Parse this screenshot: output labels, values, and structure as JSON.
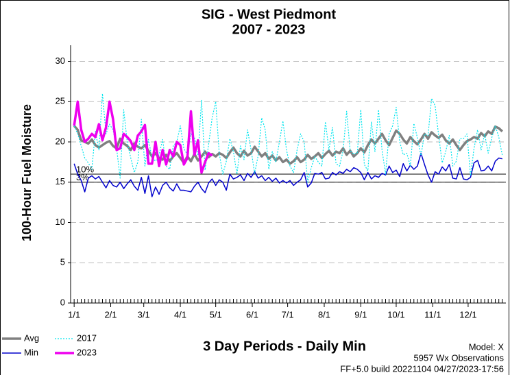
{
  "chart_data": {
    "type": "line",
    "title": "SIG - West Piedmont",
    "subtitle": "2007 - 2023",
    "y_label": "100-Hour Fuel Moisture",
    "x_label": "3 Day Periods - Daily Min",
    "notes": [
      "Model: X",
      "5957 Wx Observations",
      "FF+5.0 build 20221104 04/27/2023-17:56"
    ],
    "xlim": [
      -1,
      122
    ],
    "ylim": [
      0,
      32
    ],
    "yticks": [
      0,
      5,
      10,
      15,
      20,
      25,
      30
    ],
    "xticks": [
      {
        "value": 0,
        "label": "1/1"
      },
      {
        "value": 10.33,
        "label": "2/1"
      },
      {
        "value": 19.67,
        "label": "3/1"
      },
      {
        "value": 30,
        "label": "4/1"
      },
      {
        "value": 40,
        "label": "5/1"
      },
      {
        "value": 50.33,
        "label": "6/1"
      },
      {
        "value": 60.33,
        "label": "7/1"
      },
      {
        "value": 70.67,
        "label": "8/1"
      },
      {
        "value": 81,
        "label": "9/1"
      },
      {
        "value": 91,
        "label": "10/1"
      },
      {
        "value": 101.33,
        "label": "11/1"
      },
      {
        "value": 111.33,
        "label": "12/1"
      }
    ],
    "grid": true,
    "legend": "bottom-left",
    "reference_lines": [
      {
        "value": 16,
        "label": "10%"
      },
      {
        "value": 15,
        "label": "3%"
      }
    ],
    "x": [
      0,
      1,
      2,
      3,
      4,
      5,
      6,
      7,
      8,
      9,
      10,
      11,
      12,
      13,
      14,
      15,
      16,
      17,
      18,
      19,
      20,
      21,
      22,
      23,
      24,
      25,
      26,
      27,
      28,
      29,
      30,
      31,
      32,
      33,
      34,
      35,
      36,
      37,
      38,
      39,
      40,
      41,
      42,
      43,
      44,
      45,
      46,
      47,
      48,
      49,
      50,
      51,
      52,
      53,
      54,
      55,
      56,
      57,
      58,
      59,
      60,
      61,
      62,
      63,
      64,
      65,
      66,
      67,
      68,
      69,
      70,
      71,
      72,
      73,
      74,
      75,
      76,
      77,
      78,
      79,
      80,
      81,
      82,
      83,
      84,
      85,
      86,
      87,
      88,
      89,
      90,
      91,
      92,
      93,
      94,
      95,
      96,
      97,
      98,
      99,
      100,
      101,
      102,
      103,
      104,
      105,
      106,
      107,
      108,
      109,
      110,
      111,
      112,
      113,
      114,
      115,
      116,
      117,
      118,
      119,
      120,
      121
    ],
    "series": [
      {
        "name": "Avg",
        "color": "#808080",
        "width": 3.5,
        "dash": "none",
        "values": [
          22.0,
          21.5,
          20.2,
          20.0,
          19.8,
          20.3,
          19.6,
          19.3,
          19.6,
          19.9,
          20.1,
          19.5,
          19.2,
          20.4,
          19.8,
          19.5,
          19.0,
          19.8,
          19.4,
          19.2,
          19.6,
          18.9,
          18.2,
          18.6,
          18.0,
          17.8,
          18.4,
          17.6,
          18.2,
          18.6,
          18.0,
          17.4,
          18.2,
          17.6,
          18.5,
          17.7,
          18.2,
          18.8,
          18.1,
          18.5,
          18.2,
          18.6,
          18.4,
          18.0,
          18.7,
          19.3,
          18.6,
          18.2,
          18.9,
          18.3,
          18.6,
          19.4,
          18.8,
          18.2,
          18.6,
          17.9,
          18.3,
          17.7,
          18.1,
          17.5,
          17.8,
          17.3,
          17.6,
          18.1,
          17.5,
          17.8,
          18.4,
          17.9,
          18.2,
          18.6,
          18.0,
          18.5,
          18.9,
          18.3,
          18.8,
          18.6,
          19.2,
          18.4,
          18.9,
          18.2,
          18.6,
          19.2,
          18.7,
          19.6,
          20.3,
          19.8,
          20.4,
          21.0,
          20.2,
          19.6,
          20.5,
          21.4,
          21.0,
          20.3,
          19.8,
          20.6,
          20.1,
          19.7,
          20.3,
          21.0,
          20.4,
          21.2,
          20.8,
          20.5,
          20.9,
          20.2,
          19.8,
          20.3,
          19.6,
          19.0,
          19.6,
          20.1,
          20.3,
          20.6,
          20.4,
          21.1,
          20.7,
          21.3,
          21.0,
          21.9,
          21.7,
          21.3
        ]
      },
      {
        "name": "Min",
        "color": "#0000cc",
        "width": 1.5,
        "dash": "none",
        "values": [
          17.3,
          16.0,
          15.2,
          13.8,
          15.5,
          15.8,
          15.4,
          15.7,
          15.0,
          14.3,
          15.2,
          14.6,
          14.4,
          15.0,
          14.2,
          14.8,
          15.3,
          14.5,
          14.0,
          15.6,
          13.6,
          15.8,
          13.2,
          14.4,
          13.5,
          14.6,
          15.0,
          14.3,
          13.9,
          14.8,
          14.0,
          14.0,
          13.9,
          13.8,
          14.5,
          15.0,
          14.2,
          13.7,
          14.9,
          15.4,
          14.6,
          15.3,
          15.0,
          14.0,
          16.0,
          15.4,
          15.6,
          15.9,
          15.2,
          16.1,
          15.6,
          16.3,
          15.5,
          15.8,
          15.2,
          15.6,
          15.1,
          15.5,
          14.9,
          15.2,
          14.9,
          15.2,
          14.6,
          15.0,
          15.3,
          16.2,
          14.4,
          14.9,
          16.1,
          16.0,
          16.2,
          15.4,
          15.5,
          16.2,
          15.9,
          16.3,
          16.1,
          16.6,
          16.3,
          16.8,
          16.6,
          16.2,
          15.3,
          16.2,
          15.4,
          15.8,
          15.6,
          16.1,
          15.9,
          17.0,
          16.2,
          16.5,
          15.7,
          17.3,
          16.4,
          17.1,
          16.6,
          17.0,
          18.6,
          17.2,
          15.9,
          15.0,
          16.3,
          16.0,
          16.9,
          16.4,
          17.2,
          15.5,
          15.4,
          16.8,
          15.4,
          15.3,
          15.6,
          17.4,
          17.7,
          16.4,
          16.5,
          17.0,
          16.4,
          17.6,
          18.0,
          17.9
        ]
      },
      {
        "name": "2017",
        "color": "#00e5ee",
        "width": 1.2,
        "dash": "2 2",
        "values": [
          22.0,
          21.0,
          19.5,
          18.0,
          17.4,
          16.6,
          21.3,
          19.0,
          26.0,
          21.0,
          22.2,
          21.5,
          19.2,
          15.5,
          24.0,
          20.0,
          18.0,
          16.2,
          17.5,
          22.8,
          17.0,
          20.3,
          18.0,
          17.6,
          18.4,
          20.3,
          17.0,
          16.6,
          19.5,
          20.0,
          22.0,
          19.2,
          18.4,
          21.0,
          20.6,
          18.3,
          25.2,
          16.5,
          19.7,
          23.0,
          25.0,
          18.6,
          16.0,
          17.6,
          20.4,
          18.8,
          16.0,
          19.5,
          17.8,
          21.5,
          19.0,
          16.1,
          18.3,
          23.0,
          21.5,
          16.6,
          18.8,
          17.5,
          20.0,
          22.6,
          19.0,
          17.0,
          16.2,
          19.0,
          21.0,
          20.0,
          15.0,
          16.8,
          18.2,
          17.5,
          17.0,
          22.5,
          19.0,
          21.8,
          17.3,
          17.0,
          18.9,
          23.8,
          18.9,
          18.5,
          18.6,
          24.0,
          17.2,
          16.4,
          22.5,
          18.8,
          24.0,
          19.0,
          16.0,
          21.0,
          22.0,
          24.3,
          20.0,
          18.4,
          18.6,
          17.0,
          22.3,
          20.5,
          18.3,
          21.0,
          20.8,
          25.4,
          24.5,
          20.8,
          17.4,
          18.8,
          20.8,
          17.0,
          17.6,
          20.4,
          20.4,
          21.0,
          15.8,
          19.2,
          21.5,
          19.0,
          21.0,
          18.6,
          20.5,
          22.0,
          20.6,
          18.3
        ]
      },
      {
        "name": "2023",
        "color": "#ee00ee",
        "width": 3.5,
        "dash": "none",
        "values": [
          22.0,
          25.0,
          21.5,
          20.0,
          20.4,
          21.0,
          20.6,
          22.2,
          20.2,
          21.8,
          25.0,
          22.8,
          19.0,
          19.2,
          21.0,
          20.6,
          20.1,
          19.0,
          20.8,
          21.3,
          22.1,
          17.3,
          17.3,
          20.0,
          17.0,
          19.0,
          17.2,
          19.0,
          18.2,
          20.0,
          19.6,
          17.2,
          18.0,
          23.8,
          18.4,
          20.2,
          16.2,
          17.5,
          18.6,
          18.3,
          null,
          null,
          null,
          null,
          null,
          null,
          null,
          null,
          null,
          null,
          null,
          null,
          null,
          null,
          null,
          null,
          null,
          null,
          null,
          null,
          null,
          null,
          null,
          null,
          null,
          null,
          null,
          null,
          null,
          null,
          null,
          null,
          null,
          null,
          null,
          null,
          null,
          null,
          null,
          null,
          null,
          null,
          null,
          null,
          null,
          null,
          null,
          null,
          null,
          null,
          null,
          null,
          null,
          null,
          null,
          null,
          null,
          null,
          null,
          null,
          null,
          null,
          null,
          null,
          null,
          null,
          null,
          null,
          null,
          null,
          null,
          null,
          null,
          null,
          null,
          null,
          null,
          null,
          null,
          null,
          null,
          null
        ]
      }
    ]
  }
}
